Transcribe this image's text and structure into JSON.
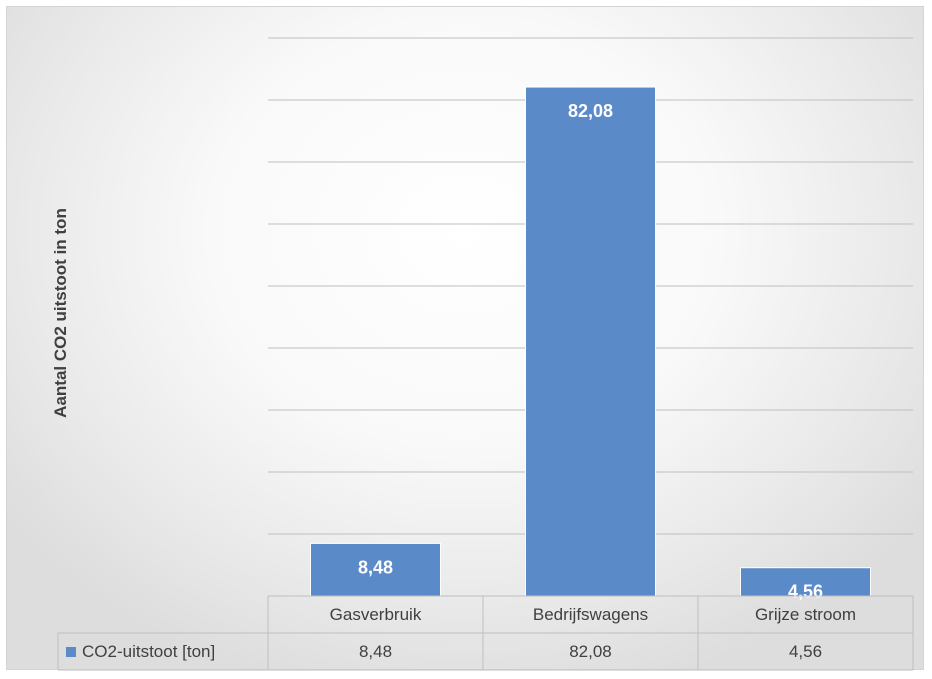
{
  "chart_data": {
    "type": "bar",
    "categories": [
      "Gasverbruik",
      "Bedrijfswagens",
      "Grijze stroom"
    ],
    "series": [
      {
        "name": "CO2-uitstoot [ton]",
        "values": [
          8.48,
          82.08,
          4.56
        ],
        "color": "#5b8ac8"
      }
    ],
    "value_labels": [
      "8,48",
      "82,08",
      "4,56"
    ],
    "title": "",
    "xlabel": "",
    "ylabel": "Aantal CO2 uitstoot in ton",
    "ylim": [
      0,
      90
    ],
    "gridlines": [
      10,
      20,
      30,
      40,
      50,
      60,
      70,
      80,
      90
    ],
    "grid": true,
    "data_table": true,
    "legend": "data-table-left"
  }
}
